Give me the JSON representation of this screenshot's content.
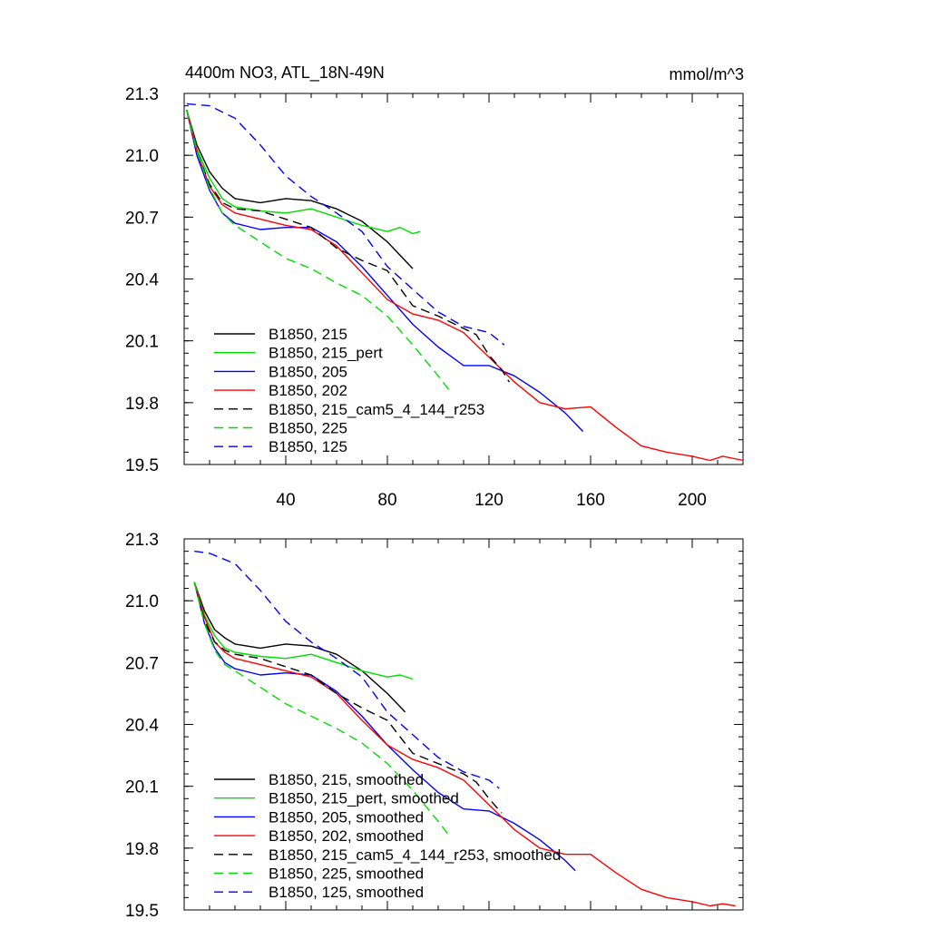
{
  "chart_data": [
    {
      "type": "line",
      "title": "4400m NO3, ATL_18N-49N",
      "units": "mmol/m^3",
      "xlabel": "",
      "ylabel": "",
      "xlim": [
        0,
        220
      ],
      "ylim": [
        19.5,
        21.3
      ],
      "xticks": [
        "40",
        "80",
        "120",
        "160",
        "200"
      ],
      "yticks": [
        "19.5",
        "19.8",
        "20.1",
        "20.4",
        "20.7",
        "21.0",
        "21.3"
      ],
      "legend_position": "bottom-left",
      "series": [
        {
          "name": "B1850, 215",
          "color": "#000000",
          "dash": "solid",
          "x": [
            1,
            5,
            10,
            15,
            20,
            30,
            40,
            50,
            60,
            70,
            80,
            90
          ],
          "y": [
            21.22,
            21.05,
            20.92,
            20.84,
            20.79,
            20.77,
            20.79,
            20.78,
            20.74,
            20.68,
            20.58,
            20.45
          ]
        },
        {
          "name": "B1850, 215_pert",
          "color": "#00dd00",
          "dash": "solid",
          "x": [
            1,
            5,
            10,
            15,
            20,
            30,
            40,
            50,
            60,
            70,
            80,
            85,
            90,
            93
          ],
          "y": [
            21.22,
            21.03,
            20.89,
            20.79,
            20.75,
            20.73,
            20.72,
            20.74,
            20.7,
            20.66,
            20.63,
            20.65,
            20.62,
            20.63
          ]
        },
        {
          "name": "B1850, 205",
          "color": "#0000ff",
          "dash": "solid",
          "x": [
            1,
            5,
            10,
            15,
            20,
            30,
            40,
            50,
            60,
            70,
            80,
            90,
            100,
            110,
            120,
            130,
            140,
            150,
            157
          ],
          "y": [
            21.22,
            21.0,
            20.83,
            20.72,
            20.67,
            20.64,
            20.65,
            20.65,
            20.58,
            20.46,
            20.32,
            20.18,
            20.07,
            19.98,
            19.98,
            19.93,
            19.85,
            19.75,
            19.66
          ]
        },
        {
          "name": "B1850, 202",
          "color": "#ff0000",
          "dash": "solid",
          "x": [
            1,
            5,
            10,
            15,
            20,
            30,
            40,
            50,
            60,
            70,
            80,
            90,
            100,
            110,
            120,
            130,
            140,
            150,
            160,
            170,
            180,
            190,
            200,
            207,
            212,
            220
          ],
          "y": [
            21.22,
            21.02,
            20.85,
            20.76,
            20.72,
            20.69,
            20.66,
            20.64,
            20.56,
            20.43,
            20.3,
            20.23,
            20.2,
            20.14,
            20.02,
            19.9,
            19.8,
            19.77,
            19.78,
            19.68,
            19.59,
            19.56,
            19.54,
            19.52,
            19.54,
            19.52
          ]
        },
        {
          "name": "B1850, 215_cam5_4_144_r253",
          "color": "#000000",
          "dash": "dashed",
          "x": [
            1,
            5,
            10,
            15,
            20,
            30,
            40,
            50,
            60,
            70,
            80,
            90,
            100,
            110,
            115,
            120,
            125,
            128
          ],
          "y": [
            21.22,
            21.02,
            20.86,
            20.77,
            20.74,
            20.73,
            20.69,
            20.65,
            20.55,
            20.49,
            20.44,
            20.27,
            20.22,
            20.16,
            20.13,
            20.03,
            19.96,
            19.9
          ]
        },
        {
          "name": "B1850, 225",
          "color": "#00dd00",
          "dash": "dashed",
          "x": [
            1,
            5,
            10,
            15,
            20,
            30,
            40,
            50,
            60,
            70,
            80,
            90,
            100,
            105
          ],
          "y": [
            21.22,
            21.02,
            20.84,
            20.72,
            20.66,
            20.58,
            20.5,
            20.45,
            20.38,
            20.32,
            20.22,
            20.08,
            19.93,
            19.85
          ]
        },
        {
          "name": "B1850, 125",
          "color": "#0000ff",
          "dash": "dashed",
          "x": [
            1,
            10,
            20,
            30,
            40,
            50,
            60,
            70,
            80,
            90,
            100,
            110,
            120,
            126
          ],
          "y": [
            21.25,
            21.24,
            21.18,
            21.05,
            20.9,
            20.8,
            20.72,
            20.63,
            20.46,
            20.35,
            20.24,
            20.17,
            20.14,
            20.08
          ]
        }
      ]
    },
    {
      "type": "line",
      "title": "",
      "xlabel": "",
      "ylabel": "",
      "xlim": [
        0,
        220
      ],
      "ylim": [
        19.5,
        21.3
      ],
      "xticks": [],
      "yticks": [
        "19.5",
        "19.8",
        "20.1",
        "20.4",
        "20.7",
        "21.0",
        "21.3"
      ],
      "legend_position": "bottom-left",
      "series": [
        {
          "name": "B1850, 215, smoothed",
          "color": "#000000",
          "dash": "solid",
          "x": [
            4,
            8,
            12,
            16,
            20,
            30,
            40,
            50,
            60,
            70,
            80,
            87
          ],
          "y": [
            21.09,
            20.95,
            20.86,
            20.82,
            20.79,
            20.77,
            20.79,
            20.78,
            20.74,
            20.66,
            20.55,
            20.46
          ]
        },
        {
          "name": "B1850, 215_pert, smoothed",
          "color": "#00dd00",
          "dash": "solid",
          "x": [
            4,
            8,
            12,
            16,
            20,
            30,
            40,
            50,
            60,
            70,
            80,
            85,
            90
          ],
          "y": [
            21.09,
            20.93,
            20.83,
            20.77,
            20.75,
            20.73,
            20.72,
            20.74,
            20.7,
            20.66,
            20.63,
            20.64,
            20.62
          ]
        },
        {
          "name": "B1850, 205, smoothed",
          "color": "#0000ff",
          "dash": "solid",
          "x": [
            4,
            8,
            12,
            16,
            20,
            30,
            40,
            50,
            60,
            70,
            80,
            90,
            100,
            110,
            120,
            130,
            140,
            150,
            154
          ],
          "y": [
            21.09,
            20.89,
            20.77,
            20.7,
            20.67,
            20.64,
            20.65,
            20.64,
            20.56,
            20.44,
            20.3,
            20.18,
            20.07,
            19.99,
            19.98,
            19.92,
            19.84,
            19.74,
            19.69
          ]
        },
        {
          "name": "B1850, 202, smoothed",
          "color": "#ff0000",
          "dash": "solid",
          "x": [
            4,
            8,
            12,
            16,
            20,
            30,
            40,
            50,
            60,
            70,
            80,
            90,
            100,
            110,
            120,
            130,
            140,
            150,
            160,
            170,
            180,
            190,
            200,
            207,
            212,
            217
          ],
          "y": [
            21.09,
            20.92,
            20.8,
            20.75,
            20.72,
            20.69,
            20.66,
            20.63,
            20.55,
            20.42,
            20.3,
            20.23,
            20.19,
            20.13,
            20.01,
            19.89,
            19.8,
            19.77,
            19.77,
            19.68,
            19.6,
            19.56,
            19.54,
            19.52,
            19.53,
            19.52
          ]
        },
        {
          "name": "B1850, 215_cam5_4_144_r253, smoothed",
          "color": "#000000",
          "dash": "dashed",
          "x": [
            4,
            8,
            12,
            16,
            20,
            30,
            40,
            50,
            60,
            70,
            80,
            90,
            100,
            110,
            115,
            120,
            125
          ],
          "y": [
            21.09,
            20.9,
            20.8,
            20.76,
            20.74,
            20.72,
            20.68,
            20.64,
            20.55,
            20.48,
            20.42,
            20.26,
            20.21,
            20.16,
            20.12,
            20.04,
            19.97
          ]
        },
        {
          "name": "B1850, 225, smoothed",
          "color": "#00dd00",
          "dash": "dashed",
          "x": [
            4,
            8,
            12,
            16,
            20,
            30,
            40,
            50,
            60,
            70,
            80,
            90,
            100,
            105
          ],
          "y": [
            21.09,
            20.89,
            20.76,
            20.69,
            20.66,
            20.58,
            20.5,
            20.44,
            20.38,
            20.31,
            20.21,
            20.08,
            19.93,
            19.85
          ]
        },
        {
          "name": "B1850, 125, smoothed",
          "color": "#0000ff",
          "dash": "dashed",
          "x": [
            4,
            10,
            20,
            30,
            40,
            50,
            60,
            70,
            80,
            90,
            100,
            110,
            120,
            124
          ],
          "y": [
            21.24,
            21.23,
            21.18,
            21.05,
            20.9,
            20.8,
            20.72,
            20.63,
            20.46,
            20.35,
            20.24,
            20.17,
            20.13,
            20.09
          ]
        }
      ]
    }
  ]
}
